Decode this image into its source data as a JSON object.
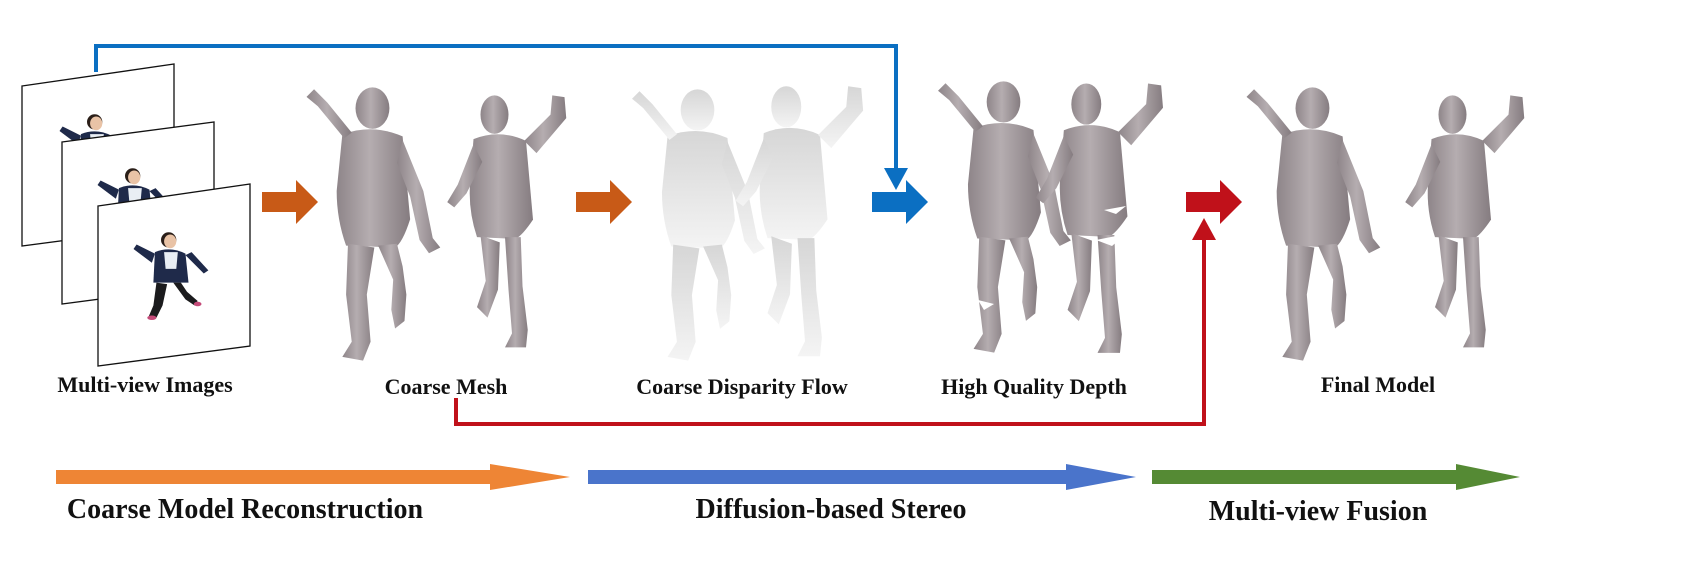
{
  "stages": [
    {
      "label": "Multi-view Images"
    },
    {
      "label": "Coarse Mesh"
    },
    {
      "label": "Coarse Disparity Flow"
    },
    {
      "label": "High Quality Depth"
    },
    {
      "label": "Final Model"
    }
  ],
  "phases": [
    {
      "label": "Coarse Model Reconstruction",
      "color": "#ee8535"
    },
    {
      "label": "Diffusion-based Stereo",
      "color": "#4a74cb"
    },
    {
      "label": "Multi-view Fusion",
      "color": "#558a34"
    }
  ],
  "colors": {
    "stage_arrow_orange": "#c85a17",
    "skip_arrow_blue": "#0b6fc2",
    "skip_arrow_red": "#c0111a",
    "mesh_gray": "#a29a9d",
    "disparity_gray": "#e2e2e2",
    "jacket_navy": "#1f2a4a"
  }
}
